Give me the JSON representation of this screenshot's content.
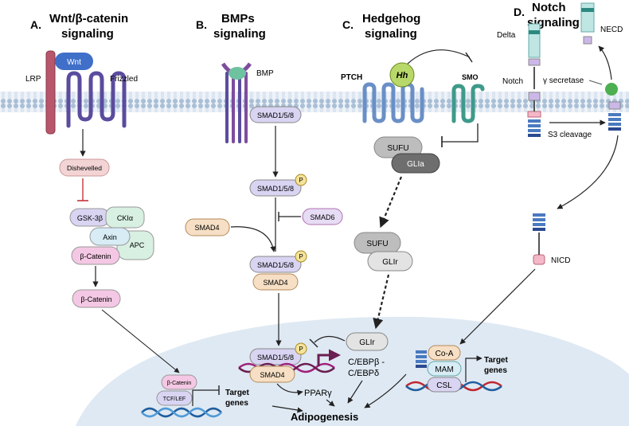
{
  "panels": {
    "a": {
      "letter": "A.",
      "title_line1": "Wnt/β-catenin",
      "title_line2": "signaling"
    },
    "b": {
      "letter": "B.",
      "title_line1": "BMPs",
      "title_line2": "signaling"
    },
    "c": {
      "letter": "C.",
      "title_line1": "Hedgehog",
      "title_line2": "signaling"
    },
    "d": {
      "letter": "D.",
      "title_line1": "Notch",
      "title_line2": "signaling"
    }
  },
  "wnt": {
    "lrp": "LRP",
    "wnt": "Wnt",
    "frizzled": "Frizzled",
    "dishevelled": "Dishevelled",
    "gsk3b": "GSK-3β",
    "ck1a": "CKIα",
    "axin": "Axin",
    "apc": "APC",
    "bcatenin_complex": "β-Catenin",
    "bcatenin_free": "β-Catenin",
    "bcatenin_nuclear": "β-Catenin",
    "tcf_lef": "TCF/LEF",
    "target_line1": "Target",
    "target_line2": "genes"
  },
  "bmp": {
    "bmp": "BMP",
    "smad158_receptor": "SMAD1/5/8",
    "smad158_p": "SMAD1/5/8",
    "smad6": "SMAD6",
    "smad4": "SMAD4",
    "smad158_complex": "SMAD1/5/8",
    "smad4_complex": "SMAD4",
    "smad158_nuclear": "SMAD1/5/8",
    "smad4_nuclear": "SMAD4",
    "p": "P"
  },
  "hedgehog": {
    "ptch": "PTCH",
    "hh": "Hh",
    "smo": "SMO",
    "sufu_top": "SUFU",
    "glia": "GLIa",
    "sufu_mid": "SUFU",
    "glir_mid": "GLIr",
    "glir_nuclear": "GLIr"
  },
  "nucleus": {
    "cebp_line1": "C/EBPβ -",
    "cebp_line2": "C/EBPδ",
    "ppar": "PPARγ",
    "adipogenesis": "Adipogenesis"
  },
  "notch": {
    "delta": "Delta",
    "necd": "NECD",
    "notch": "Notch",
    "gamma_secretase": "γ secretase",
    "s3_cleavage": "S3 cleavage",
    "nicd": "NICD",
    "coa": "Co-A",
    "mam": "MAM",
    "csl": "CSL",
    "target_line1": "Target",
    "target_line2": "genes"
  },
  "colors": {
    "membrane": "#a9bfd6",
    "receptor_purple": "#5b4c9e",
    "hedgehog_blue": "#6a8fc7",
    "smo_teal": "#3f9a8a",
    "nucleus": "#dfe9f3",
    "lilac": "#d8d4f2",
    "tan": "#f6dfc4",
    "pink": "#f2d4d4",
    "mint": "#d8f0e2",
    "lavender": "#e7dcf5",
    "grey": "#bdbdbd",
    "dark_grey": "#6e6e6e",
    "yellow_p": "#f6e39a",
    "dna_magenta": "#a0207a",
    "dna_blue": "#1f5e9e",
    "red_arrow": "#c0262d",
    "plum": "#6a1e52"
  }
}
